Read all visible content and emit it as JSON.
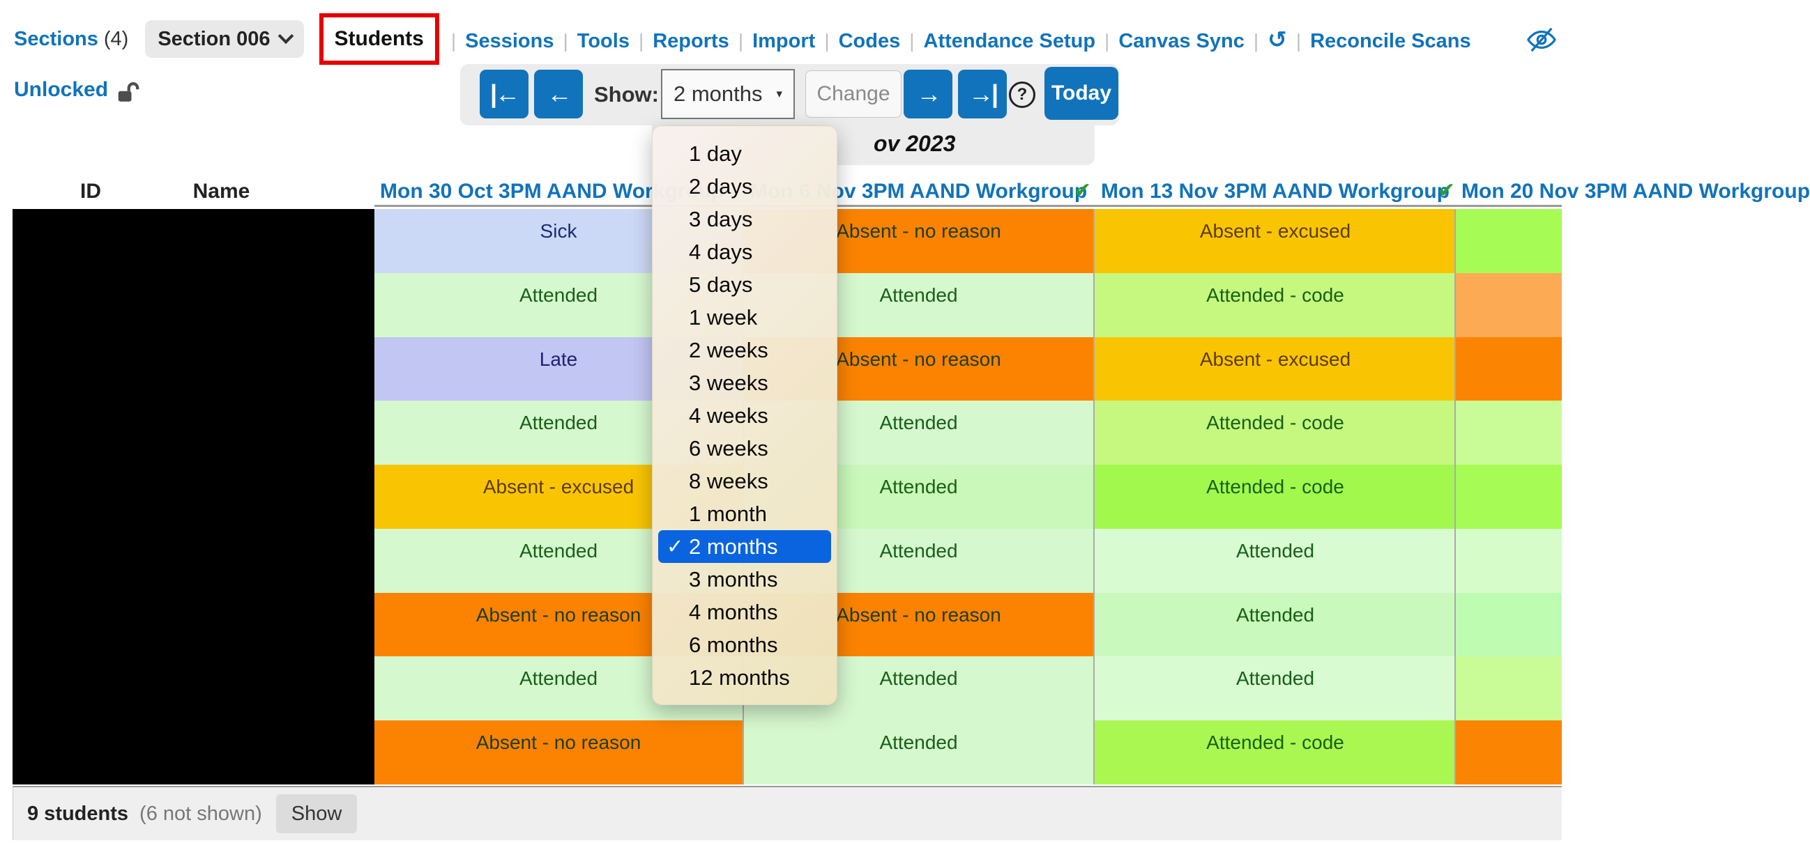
{
  "nav": {
    "sections_label": "Sections",
    "sections_count": "(4)",
    "section_selector": "Section 006",
    "students_tab": "Students",
    "links": [
      "Sessions",
      "Tools",
      "Reports",
      "Import",
      "Codes",
      "Attendance Setup",
      "Canvas Sync",
      "Reconcile Scans"
    ],
    "history_icon": "↺",
    "unlocked_label": "Unlocked"
  },
  "toolbar": {
    "show_label": "Show:",
    "range_value": "2 months",
    "change_label": "Change",
    "help_label": "?",
    "today_label": "Today",
    "first_arrow": "|←",
    "prev_arrow": "←",
    "next_arrow": "→",
    "last_arrow": "→|",
    "caret": "▾",
    "date_text": "ov 2023"
  },
  "dropdown": {
    "items": [
      "1 day",
      "2 days",
      "3 days",
      "4 days",
      "5 days",
      "1 week",
      "2 weeks",
      "3 weeks",
      "4 weeks",
      "6 weeks",
      "8 weeks",
      "1 month",
      "2 months",
      "3 months",
      "4 months",
      "6 months",
      "12 months"
    ],
    "selected": "2 months",
    "check_glyph": "✓",
    "selected_bg": "#0a64e0"
  },
  "table": {
    "id_header": "ID",
    "name_header": "Name",
    "header_check_glyph": "✔",
    "session_headers": [
      {
        "label": "Mon 30 Oct 3PM AAND Workgroup"
      },
      {
        "label": "Mon 6 Nov 3PM AAND Workgroup"
      },
      {
        "label": "Mon 13 Nov 3PM AAND Workgroup"
      },
      {
        "label": "Mon 20 Nov 3PM AAND Workgroup"
      }
    ],
    "columns": [
      {
        "cells": [
          {
            "text": "Sick",
            "bg": "#ccd9f6",
            "fg": "#1b2a78"
          },
          {
            "text": "Attended",
            "bg": "#d6f8cf",
            "fg": "#176117"
          },
          {
            "text": "Late",
            "bg": "#c2c6f2",
            "fg": "#1f1f7a"
          },
          {
            "text": "Attended",
            "bg": "#d6f8cf",
            "fg": "#176117"
          },
          {
            "text": "Absent - excused",
            "bg": "#f9c502",
            "fg": "#5c3c00"
          },
          {
            "text": "Attended",
            "bg": "#d6f8cf",
            "fg": "#176117"
          },
          {
            "text": "Absent - no reason",
            "bg": "#fb8301",
            "fg": "#1e3d1e"
          },
          {
            "text": "Attended",
            "bg": "#d6f8cf",
            "fg": "#176117"
          },
          {
            "text": "Absent - no reason",
            "bg": "#fb8301",
            "fg": "#1e3d1e"
          }
        ]
      },
      {
        "cells": [
          {
            "text": "Absent - no reason",
            "bg": "#fb8301",
            "fg": "#1e3d1e"
          },
          {
            "text": "Attended",
            "bg": "#d6f8cf",
            "fg": "#176117"
          },
          {
            "text": "Absent - no reason",
            "bg": "#fb8301",
            "fg": "#1e3d1e"
          },
          {
            "text": "Attended",
            "bg": "#d6f8cf",
            "fg": "#176117"
          },
          {
            "text": "Attended",
            "bg": "#c9f8ba",
            "fg": "#176117"
          },
          {
            "text": "Attended",
            "bg": "#d6f8cf",
            "fg": "#176117"
          },
          {
            "text": "Absent - no reason",
            "bg": "#fb8301",
            "fg": "#1e3d1e"
          },
          {
            "text": "Attended",
            "bg": "#d6f8cf",
            "fg": "#176117"
          },
          {
            "text": "Attended",
            "bg": "#d6f8cf",
            "fg": "#176117"
          }
        ]
      },
      {
        "cells": [
          {
            "text": "Absent - excused",
            "bg": "#f9c502",
            "fg": "#5c3c00"
          },
          {
            "text": "Attended - code",
            "bg": "#c6f87f",
            "fg": "#176117"
          },
          {
            "text": "Absent - excused",
            "bg": "#f9c502",
            "fg": "#5c3c00"
          },
          {
            "text": "Attended - code",
            "bg": "#c6f87f",
            "fg": "#176117"
          },
          {
            "text": "Attended - code",
            "bg": "#a3f84d",
            "fg": "#176117"
          },
          {
            "text": "Attended",
            "bg": "#d9fbd2",
            "fg": "#176117"
          },
          {
            "text": "Attended",
            "bg": "#c9f9bc",
            "fg": "#176117"
          },
          {
            "text": "Attended",
            "bg": "#d9fbd2",
            "fg": "#176117"
          },
          {
            "text": "Attended - code",
            "bg": "#aaf751",
            "fg": "#176117"
          }
        ]
      },
      {
        "cells": [
          {
            "text": "",
            "bg": "#a6fb55",
            "fg": "#176117"
          },
          {
            "text": "",
            "bg": "#fdaa55",
            "fg": "#1e3d1e"
          },
          {
            "text": "",
            "bg": "#fc8403",
            "fg": "#1e3d1e"
          },
          {
            "text": "",
            "bg": "#c9fb97",
            "fg": "#176117"
          },
          {
            "text": "",
            "bg": "#a6fb55",
            "fg": "#176117"
          },
          {
            "text": "",
            "bg": "#d6fcca",
            "fg": "#176117"
          },
          {
            "text": "",
            "bg": "#befcb1",
            "fg": "#176117"
          },
          {
            "text": "",
            "bg": "#c9fb97",
            "fg": "#176117"
          },
          {
            "text": "",
            "bg": "#fc8403",
            "fg": "#1e3d1e"
          }
        ]
      }
    ]
  },
  "footer": {
    "count_label": "9 students",
    "not_shown_label": "(6 not shown)",
    "show_button": "Show"
  },
  "colors": {
    "link_blue": "#1173bb",
    "selection_red": "#e60000",
    "check_green": "#2f9e2f"
  }
}
